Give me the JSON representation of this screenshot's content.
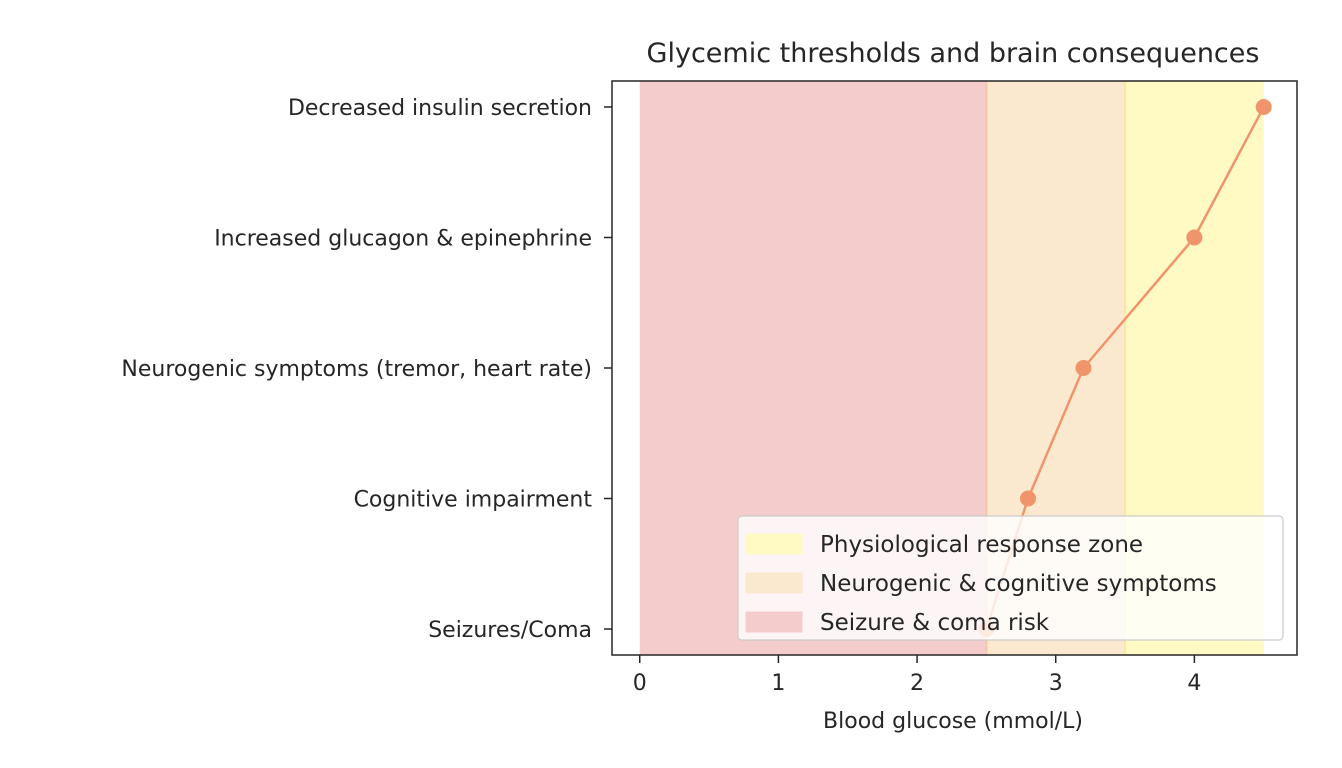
{
  "chart_data": {
    "type": "line",
    "title": "Glycemic thresholds and brain consequences",
    "xlabel": "Blood glucose (mmol/L)",
    "ylabel": "",
    "xlim": [
      -0.2,
      4.74
    ],
    "x_ticks": [
      0,
      1,
      2,
      3,
      4
    ],
    "categories": [
      "Seizures/Coma",
      "Cognitive impairment",
      "Neurogenic symptoms (tremor, heart rate)",
      "Increased glucagon & epinephrine",
      "Decreased insulin secretion"
    ],
    "series": [
      {
        "x": [
          2.5,
          2.8,
          3.2,
          4.0,
          4.5
        ],
        "y_categories": [
          "Seizures/Coma",
          "Cognitive impairment",
          "Neurogenic symptoms (tremor, heart rate)",
          "Increased glucagon & epinephrine",
          "Decreased insulin secretion"
        ],
        "color": "#f0956b"
      }
    ],
    "zones": [
      {
        "name": "Physiological response zone",
        "x_range": [
          3.5,
          4.5
        ],
        "color": "#fff9c4"
      },
      {
        "name": "Neurogenic & cognitive symptoms",
        "x_range": [
          2.5,
          3.5
        ],
        "color": "#fbe9cf"
      },
      {
        "name": "Seizure & coma risk",
        "x_range": [
          0.0,
          2.5
        ],
        "color": "#f5cccc"
      }
    ],
    "legend_position": "lower right",
    "grid": false
  }
}
